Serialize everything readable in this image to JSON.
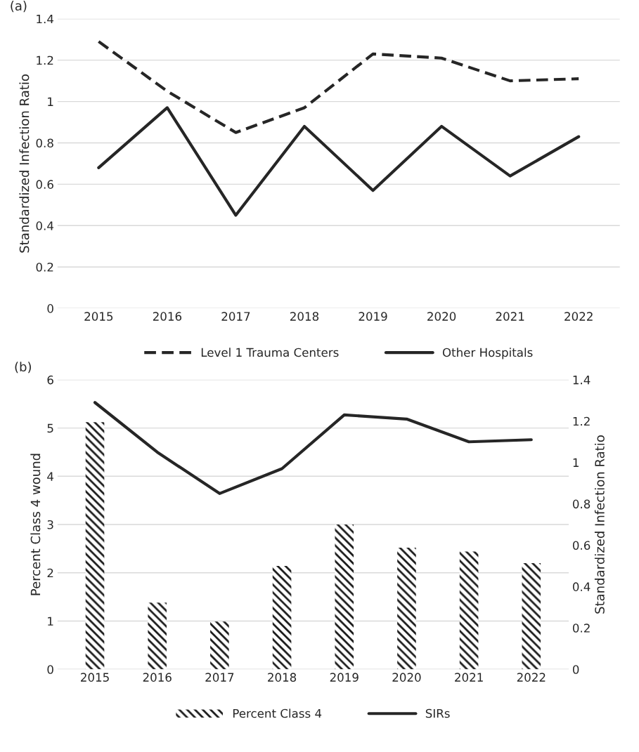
{
  "chart_data": [
    {
      "type": "line",
      "categories": [
        "2015",
        "2016",
        "2017",
        "2018",
        "2019",
        "2020",
        "2021",
        "2022"
      ],
      "ylabel": "Standardized Infection Ratio",
      "ylim": [
        0,
        1.4
      ],
      "yticks": [
        0,
        0.2,
        0.4,
        0.6,
        0.8,
        1,
        1.2,
        1.4
      ],
      "grid": "y",
      "legend": "bottom",
      "annotations": [
        "(a)"
      ],
      "series": [
        {
          "name": "Level 1 Trauma Centers",
          "color": "#262626",
          "line_style": "dashed",
          "values": [
            1.29,
            1.05,
            0.85,
            0.97,
            1.23,
            1.21,
            1.1,
            1.11
          ]
        },
        {
          "name": "Other Hospitals",
          "color": "#262626",
          "line_style": "solid",
          "values": [
            0.68,
            0.97,
            0.45,
            0.88,
            0.57,
            0.88,
            0.64,
            0.83
          ]
        }
      ]
    },
    {
      "type": "bar",
      "categories": [
        "2015",
        "2016",
        "2017",
        "2018",
        "2019",
        "2020",
        "2021",
        "2022"
      ],
      "ylabel": "Percent Class 4 wound",
      "y2label": "Standardized Infection Ratio",
      "ylim": [
        0,
        6
      ],
      "yticks": [
        0,
        1,
        2,
        3,
        4,
        5,
        6
      ],
      "y2lim": [
        0,
        1.4
      ],
      "y2ticks": [
        0,
        0.2,
        0.4,
        0.6,
        0.8,
        1,
        1.2,
        1.4
      ],
      "grid": "y",
      "legend": "bottom",
      "annotations": [
        "(b)"
      ],
      "series": [
        {
          "name": "Percent Class 4",
          "type": "bar",
          "color": "#1a1a1a",
          "values": [
            5.12,
            1.38,
            0.99,
            2.14,
            3.0,
            2.52,
            2.44,
            2.2
          ]
        },
        {
          "name": "SIRs",
          "type": "line",
          "axis": "y2",
          "color": "#262626",
          "values": [
            1.29,
            1.05,
            0.85,
            0.97,
            1.23,
            1.21,
            1.1,
            1.11
          ]
        }
      ]
    }
  ]
}
